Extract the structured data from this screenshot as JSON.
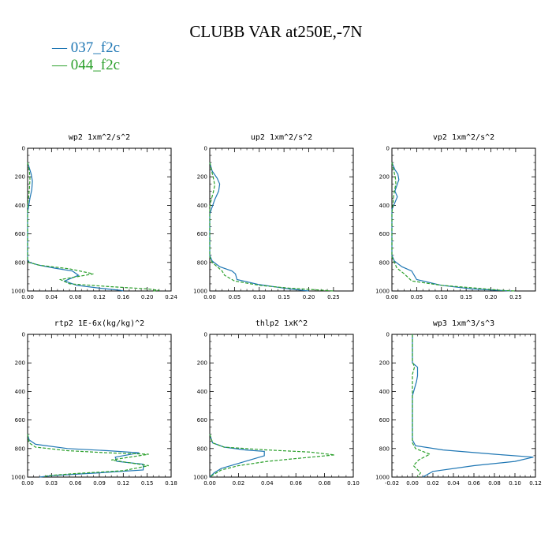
{
  "figure": {
    "title": "CLUBB VAR at250E,-7N",
    "legend": [
      {
        "label": "037_f2c",
        "color": "#1f77b4"
      },
      {
        "label": "044_f2c",
        "color": "#2ca02c"
      }
    ]
  },
  "chart_data": [
    {
      "type": "line",
      "title": "wp2  1xm^2/s^2",
      "xlim": [
        0,
        0.24
      ],
      "ylim": [
        1000,
        0
      ],
      "xticks": [
        "0.00",
        "0.04",
        "0.08",
        "0.12",
        "0.16",
        "0.20",
        "0.24"
      ],
      "yticks": [
        "0",
        "200",
        "400",
        "600",
        "800",
        "1000"
      ],
      "series": [
        {
          "name": "037_f2c",
          "x": [
            0,
            0.003,
            0.006,
            0.008,
            0.007,
            0.004,
            0.002,
            0,
            0,
            0.003,
            0.02,
            0.045,
            0.075,
            0.085,
            0.062,
            0.082,
            0.12,
            0.155,
            0.16
          ],
          "y": [
            100,
            140,
            180,
            230,
            290,
            350,
            400,
            450,
            780,
            800,
            820,
            840,
            860,
            890,
            930,
            960,
            980,
            995,
            1000
          ]
        },
        {
          "name": "044_f2c",
          "x": [
            0,
            0.003,
            0.004,
            0.003,
            0.002,
            0,
            0,
            0.002,
            0.02,
            0.07,
            0.11,
            0.055,
            0.07,
            0.14,
            0.2,
            0.22,
            0.21
          ],
          "y": [
            100,
            160,
            220,
            280,
            330,
            400,
            780,
            800,
            820,
            845,
            880,
            920,
            950,
            970,
            985,
            995,
            1000
          ]
        }
      ]
    },
    {
      "type": "line",
      "title": "up2  1xm^2/s^2",
      "xlim": [
        0,
        0.29
      ],
      "ylim": [
        1000,
        0
      ],
      "xticks": [
        "0.00",
        "0.05",
        "0.10",
        "0.15",
        "0.20",
        "0.25"
      ],
      "yticks": [
        "0",
        "200",
        "400",
        "600",
        "800",
        "1000"
      ],
      "series": [
        {
          "name": "037_f2c",
          "x": [
            0,
            0.005,
            0.015,
            0.02,
            0.018,
            0.01,
            0.004,
            0,
            0,
            0.005,
            0.02,
            0.045,
            0.052,
            0.055,
            0.1,
            0.16,
            0.2
          ],
          "y": [
            100,
            160,
            210,
            250,
            300,
            360,
            420,
            460,
            750,
            790,
            830,
            860,
            880,
            920,
            955,
            985,
            1000
          ]
        },
        {
          "name": "044_f2c",
          "x": [
            0,
            0.004,
            0.008,
            0.01,
            0.007,
            0.003,
            0,
            0,
            0.005,
            0.015,
            0.025,
            0.03,
            0.05,
            0.1,
            0.16,
            0.23,
            0.25
          ],
          "y": [
            100,
            160,
            220,
            260,
            310,
            360,
            410,
            760,
            800,
            830,
            860,
            890,
            930,
            960,
            980,
            995,
            1000
          ]
        }
      ]
    },
    {
      "type": "line",
      "title": "vp2  1xm^2/s^2",
      "xlim": [
        0,
        0.29
      ],
      "ylim": [
        1000,
        0
      ],
      "xticks": [
        "0.00",
        "0.05",
        "0.10",
        "0.15",
        "0.20",
        "0.25"
      ],
      "yticks": [
        "0",
        "200",
        "400",
        "600",
        "800",
        "1000"
      ],
      "series": [
        {
          "name": "037_f2c",
          "x": [
            0,
            0.006,
            0.012,
            0.014,
            0.01,
            0.006,
            0.011,
            0.006,
            0,
            0,
            0.005,
            0.02,
            0.04,
            0.05,
            0.1,
            0.16,
            0.24
          ],
          "y": [
            100,
            150,
            180,
            220,
            260,
            300,
            340,
            380,
            430,
            750,
            790,
            830,
            860,
            920,
            960,
            985,
            1000
          ]
        },
        {
          "name": "044_f2c",
          "x": [
            0,
            0.004,
            0.007,
            0.008,
            0.005,
            0.003,
            0.002,
            0,
            0,
            0.005,
            0.01,
            0.025,
            0.04,
            0.1,
            0.17,
            0.22,
            0.25
          ],
          "y": [
            100,
            160,
            210,
            250,
            300,
            350,
            400,
            450,
            760,
            800,
            840,
            880,
            930,
            960,
            980,
            995,
            1000
          ]
        }
      ]
    },
    {
      "type": "line",
      "title": "rtp2  1E-6x(kg/kg)^2",
      "xlim": [
        0,
        0.18
      ],
      "ylim": [
        1000,
        0
      ],
      "xticks": [
        "0.00",
        "0.03",
        "0.06",
        "0.09",
        "0.12",
        "0.15",
        "0.18"
      ],
      "yticks": [
        "0",
        "200",
        "400",
        "600",
        "800",
        "1000"
      ],
      "series": [
        {
          "name": "037_f2c",
          "x": [
            0,
            0.002,
            0.01,
            0.05,
            0.1,
            0.14,
            0.11,
            0.112,
            0.145,
            0.145,
            0.09,
            0.03,
            0.015
          ],
          "y": [
            700,
            740,
            770,
            800,
            815,
            830,
            860,
            890,
            910,
            950,
            970,
            990,
            1000
          ]
        },
        {
          "name": "044_f2c",
          "x": [
            0,
            0.002,
            0.01,
            0.05,
            0.1,
            0.152,
            0.105,
            0.152,
            0.12,
            0.06,
            0.025,
            0.02
          ],
          "y": [
            700,
            760,
            790,
            815,
            830,
            840,
            880,
            920,
            955,
            975,
            990,
            1000
          ]
        }
      ]
    },
    {
      "type": "line",
      "title": "thlp2  1xK^2",
      "xlim": [
        0,
        0.1
      ],
      "ylim": [
        1000,
        0
      ],
      "xticks": [
        "0.00",
        "0.02",
        "0.04",
        "0.06",
        "0.08",
        "0.10"
      ],
      "yticks": [
        "0",
        "200",
        "400",
        "600",
        "800",
        "1000"
      ],
      "series": [
        {
          "name": "037_f2c",
          "x": [
            0,
            0.002,
            0.01,
            0.025,
            0.038,
            0.038,
            0.028,
            0.018,
            0.008,
            0.003,
            0
          ],
          "y": [
            700,
            760,
            790,
            810,
            820,
            850,
            880,
            910,
            940,
            970,
            1000
          ]
        },
        {
          "name": "044_f2c",
          "x": [
            0,
            0.002,
            0.01,
            0.04,
            0.07,
            0.087,
            0.06,
            0.04,
            0.02,
            0.008,
            0.003,
            0
          ],
          "y": [
            700,
            760,
            790,
            810,
            825,
            845,
            870,
            890,
            920,
            950,
            980,
            1000
          ]
        }
      ]
    },
    {
      "type": "line",
      "title": "wp3  1xm^3/s^3",
      "xlim": [
        -0.02,
        0.12
      ],
      "ylim": [
        1000,
        0
      ],
      "xticks": [
        "-0.02",
        "0.00",
        "0.02",
        "0.04",
        "0.06",
        "0.08",
        "0.10",
        "0.12"
      ],
      "yticks": [
        "0",
        "200",
        "400",
        "600",
        "800",
        "1000"
      ],
      "series": [
        {
          "name": "037_f2c",
          "x": [
            0,
            0,
            0.005,
            0.005,
            0.005,
            0.004,
            0.002,
            0,
            0,
            0.003,
            0.03,
            0.08,
            0.118,
            0.1,
            0.06,
            0.02,
            0.01
          ],
          "y": [
            0,
            200,
            230,
            260,
            290,
            330,
            380,
            430,
            740,
            780,
            810,
            840,
            860,
            890,
            920,
            960,
            1000
          ]
        },
        {
          "name": "044_f2c",
          "x": [
            0,
            0,
            0.002,
            0,
            0,
            0.003,
            0.017,
            0.006,
            0.001,
            0.008,
            0.005
          ],
          "y": [
            0,
            190,
            230,
            280,
            760,
            800,
            840,
            880,
            920,
            970,
            1000
          ]
        }
      ]
    }
  ]
}
